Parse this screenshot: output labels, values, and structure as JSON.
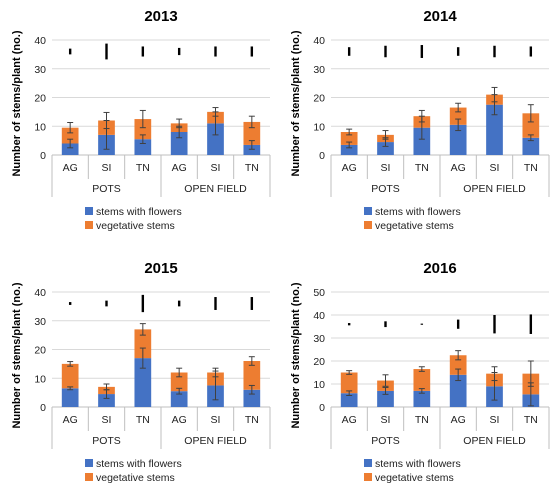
{
  "colors": {
    "flowers": "#4472C4",
    "vegetative": "#ED7D31",
    "grid": "#D9D9D9",
    "axis": "#BFBFBF",
    "error": "#404040"
  },
  "chart_data": [
    {
      "type": "bar",
      "stacked": true,
      "title": "2013",
      "ylabel": "Number of stems/plant (no.)",
      "ylim": [
        0,
        40
      ],
      "yticks": [
        0,
        10,
        20,
        30,
        40
      ],
      "categories": [
        "AG",
        "SI",
        "TN",
        "AG",
        "SI",
        "TN"
      ],
      "groups": [
        "POTS",
        "OPEN FIELD"
      ],
      "series": [
        {
          "name": "stems with flowers",
          "values": [
            4,
            7,
            5.5,
            8,
            11,
            3.5
          ],
          "err": [
            1.5,
            5,
            1.5,
            2,
            4,
            1.5
          ]
        },
        {
          "name": "vegetative stems",
          "values": [
            5.5,
            5,
            7,
            3,
            4,
            8
          ],
          "err": [
            1.8,
            2.8,
            3,
            1.5,
            1.5,
            2
          ]
        }
      ],
      "sig_marks": [
        2,
        5.5,
        3.5,
        2.5,
        3.5,
        3.5
      ],
      "legend": "bottom-left"
    },
    {
      "type": "bar",
      "stacked": true,
      "title": "2014",
      "ylabel": "Number of stems/plant (no.)",
      "ylim": [
        0,
        40
      ],
      "yticks": [
        0,
        10,
        20,
        30,
        40
      ],
      "categories": [
        "AG",
        "SI",
        "TN",
        "AG",
        "SI",
        "TN"
      ],
      "groups": [
        "POTS",
        "OPEN FIELD"
      ],
      "series": [
        {
          "name": "stems with flowers",
          "values": [
            3.5,
            4.5,
            9.5,
            10.5,
            17.5,
            6
          ],
          "err": [
            1,
            1.5,
            4,
            2,
            3.5,
            1
          ]
        },
        {
          "name": "vegetative stems",
          "values": [
            4.5,
            2.5,
            4,
            6,
            3.5,
            8.5
          ],
          "err": [
            1,
            1.5,
            2,
            1.5,
            2.5,
            3
          ]
        }
      ],
      "sig_marks": [
        3,
        4,
        4.5,
        3,
        4,
        3.5
      ],
      "legend": "bottom-left"
    },
    {
      "type": "bar",
      "stacked": true,
      "title": "2015",
      "ylabel": "Number of stems/plant (no.)",
      "ylim": [
        0,
        40
      ],
      "yticks": [
        0,
        10,
        20,
        30,
        40
      ],
      "categories": [
        "AG",
        "SI",
        "TN",
        "AG",
        "SI",
        "TN"
      ],
      "groups": [
        "POTS",
        "OPEN FIELD"
      ],
      "series": [
        {
          "name": "stems with flowers",
          "values": [
            6.5,
            4.5,
            17,
            5.5,
            7.5,
            6
          ],
          "err": [
            0.5,
            1.5,
            3.5,
            1,
            5,
            1.5
          ]
        },
        {
          "name": "vegetative stems",
          "values": [
            8.5,
            2.5,
            10,
            6.5,
            4.5,
            10
          ],
          "err": [
            0.8,
            1,
            2,
            1.5,
            1.5,
            1.5
          ]
        }
      ],
      "sig_marks": [
        1,
        2,
        6,
        2,
        4.5,
        4.5
      ],
      "legend": "bottom-left"
    },
    {
      "type": "bar",
      "stacked": true,
      "title": "2016",
      "ylabel": "Number of stems/plant (no.)",
      "ylim": [
        0,
        50
      ],
      "yticks": [
        0,
        10,
        20,
        30,
        40,
        50
      ],
      "categories": [
        "AG",
        "SI",
        "TN",
        "AG",
        "SI",
        "TN"
      ],
      "groups": [
        "POTS",
        "OPEN FIELD"
      ],
      "series": [
        {
          "name": "stems with flowers",
          "values": [
            6,
            7,
            7,
            14,
            9,
            5.5
          ],
          "err": [
            1,
            1.5,
            1,
            2.5,
            6,
            5
          ]
        },
        {
          "name": "vegetative stems",
          "values": [
            9,
            4.5,
            9.5,
            8.5,
            5.5,
            9
          ],
          "err": [
            0.8,
            2.5,
            1,
            2,
            3,
            5.5
          ]
        }
      ],
      "sig_marks": [
        1,
        2.5,
        0.5,
        4,
        8,
        8.5
      ],
      "legend": "bottom-left"
    }
  ]
}
